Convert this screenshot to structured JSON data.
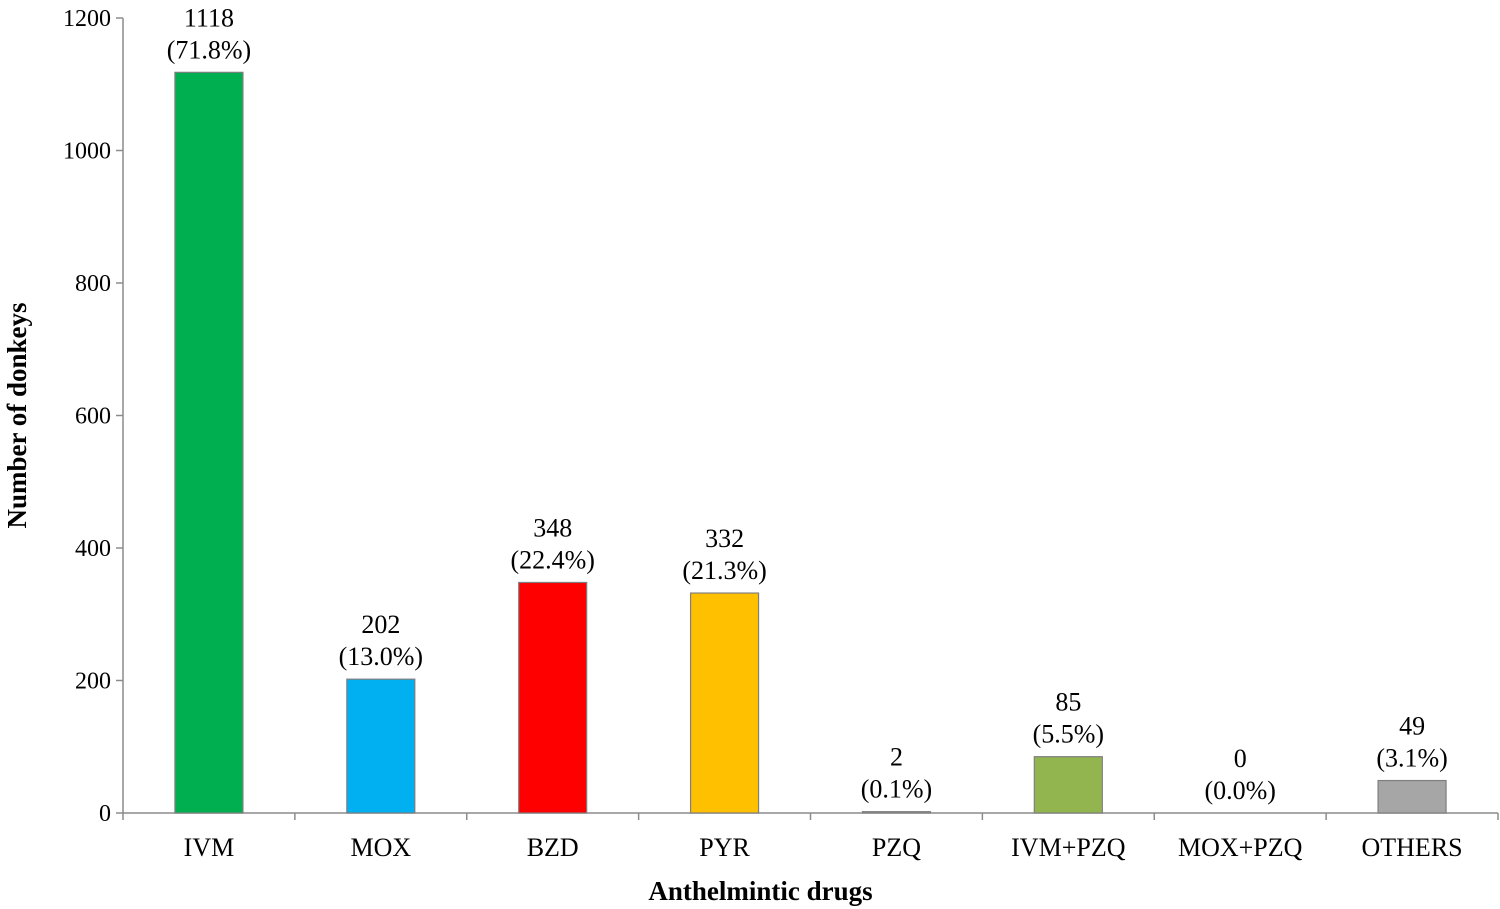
{
  "chart_data": {
    "type": "bar",
    "title": "",
    "xlabel": "Anthelmintic drugs",
    "ylabel": "Number of donkeys",
    "ylim": [
      0,
      1200
    ],
    "yticks": [
      0,
      200,
      400,
      600,
      800,
      1000,
      1200
    ],
    "grid": false,
    "legend": "none",
    "categories": [
      "IVM",
      "MOX",
      "BZD",
      "PYR",
      "PZQ",
      "IVM+PZQ",
      "MOX+PZQ",
      "OTHERS"
    ],
    "values": [
      1118,
      202,
      348,
      332,
      2,
      85,
      0,
      49
    ],
    "value_labels": [
      "1118",
      "202",
      "348",
      "332",
      "2",
      "85",
      "0",
      "49"
    ],
    "percent_labels": [
      "(71.8%)",
      "(13.0%)",
      "(22.4%)",
      "(21.3%)",
      "(0.1%)",
      "(5.5%)",
      "(0.0%)",
      "(3.1%)"
    ],
    "colors": [
      "#00b050",
      "#00b0f0",
      "#ff0000",
      "#ffc000",
      "#a6a6a6",
      "#92b550",
      "#a6a6a6",
      "#a6a6a6"
    ]
  }
}
